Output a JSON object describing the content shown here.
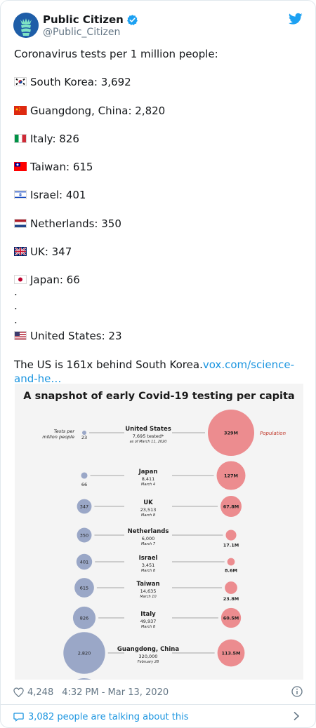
{
  "account": {
    "name": "Public Citizen",
    "handle": "@Public_Citizen"
  },
  "tweet": {
    "intro": "Coronavirus tests per 1 million people:",
    "items": [
      {
        "flag": "south-korea-flag",
        "text": "South Korea: 3,692"
      },
      {
        "flag": "china-flag",
        "text": "Guangdong, China: 2,820"
      },
      {
        "flag": "italy-flag",
        "text": "Italy: 826"
      },
      {
        "flag": "taiwan-flag",
        "text": "Taiwan: 615"
      },
      {
        "flag": "israel-flag",
        "text": "Israel: 401"
      },
      {
        "flag": "netherlands-flag",
        "text": "Netherlands: 350"
      },
      {
        "flag": "uk-flag",
        "text": "UK: 347"
      },
      {
        "flag": "japan-flag",
        "text": "Japan: 66"
      },
      {
        "flag": "us-flag",
        "text": "United States: 23"
      }
    ],
    "dots": [
      ".",
      ".",
      "."
    ],
    "conclusion": "The US is 161x behind South Korea.",
    "link": "vox.com/science-and-he…",
    "link_part1": "vox.com/science-",
    "link_part2": "and-he…"
  },
  "figure": {
    "title": "A snapshot of early Covid-19 testing per capita",
    "left_header": "Tests per million people",
    "left_header_1": "Tests per",
    "left_header_2": "million people",
    "right_header": "Population",
    "rows": [
      {
        "name": "United States",
        "tests_per_million": "23",
        "tested": "7,695 tested*",
        "date": "as of March 11, 2020",
        "population": "329M",
        "tpm": 23,
        "pop": 329
      },
      {
        "name": "Japan",
        "tests_per_million": "66",
        "tested": "8,411",
        "date": "March 4",
        "population": "127M",
        "tpm": 66,
        "pop": 127
      },
      {
        "name": "UK",
        "tests_per_million": "347",
        "tested": "23,513",
        "date": "March 8",
        "population": "67.8M",
        "tpm": 347,
        "pop": 67.8
      },
      {
        "name": "Netherlands",
        "tests_per_million": "350",
        "tested": "6,000",
        "date": "March 7",
        "population": "17.1M",
        "tpm": 350,
        "pop": 17.1
      },
      {
        "name": "Israel",
        "tests_per_million": "401",
        "tested": "3,451",
        "date": "March 8",
        "population": "8.6M",
        "tpm": 401,
        "pop": 8.6
      },
      {
        "name": "Taiwan",
        "tests_per_million": "615",
        "tested": "14,635",
        "date": "March 10",
        "population": "23.8M",
        "tpm": 615,
        "pop": 23.8
      },
      {
        "name": "Italy",
        "tests_per_million": "826",
        "tested": "49,937",
        "date": "March 8",
        "population": "60.5M",
        "tpm": 826,
        "pop": 60.5
      },
      {
        "name": "Guangdong, China",
        "tests_per_million": "2,820",
        "tested": "320,000",
        "date": "February 28",
        "population": "113.5M",
        "tpm": 2820,
        "pop": 113.5
      }
    ],
    "colors": {
      "tests": "#9aa7c7",
      "population": "#ec8c8f",
      "text": "#222222"
    }
  },
  "footer": {
    "likes": "4,248",
    "timestamp": "4:32 PM - Mar 13, 2020",
    "talking": "3,082 people are talking about this"
  },
  "colors": {
    "link": "#1b95e0",
    "muted": "#657786",
    "avatar": "#1f5ea8"
  }
}
